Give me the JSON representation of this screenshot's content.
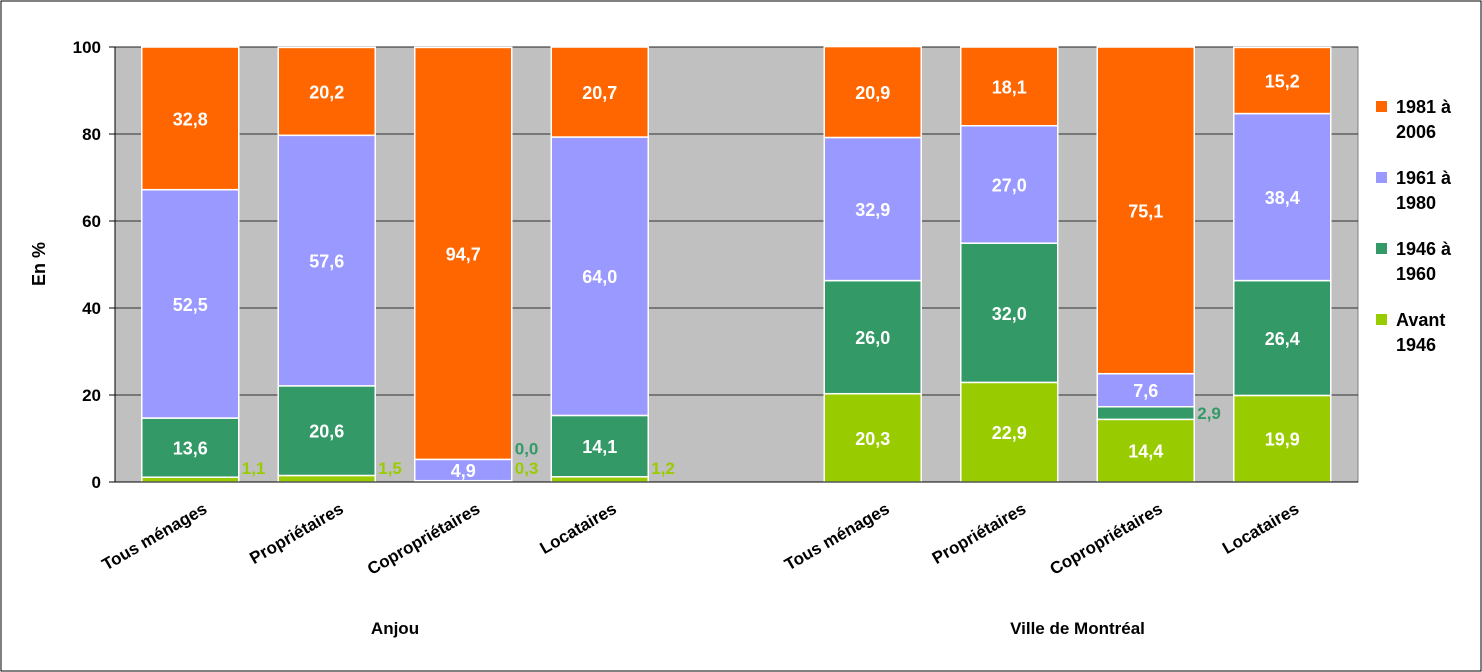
{
  "chart_data": {
    "type": "bar",
    "stacked": true,
    "ylabel": "En %",
    "ylim": [
      0,
      100
    ],
    "yticks": [
      "0",
      "20",
      "40",
      "60",
      "80",
      "100"
    ],
    "grid": true,
    "legend_position": "right",
    "groups": [
      {
        "name": "Anjou",
        "categories": [
          "Tous ménages",
          "Propriétaires",
          "Copropriétaires",
          "Locataires"
        ]
      },
      {
        "name": "Ville de Montréal",
        "categories": [
          "Tous ménages",
          "Propriétaires",
          "Copropriétaires",
          "Locataires"
        ]
      }
    ],
    "series": [
      {
        "name": "Avant 1946",
        "color": "#99cc00",
        "values": [
          1.1,
          1.5,
          0.3,
          1.2,
          20.3,
          22.9,
          14.4,
          19.9
        ],
        "labels": [
          "1,1",
          "1,5",
          "0,3",
          "1,2",
          "20,3",
          "22,9",
          "14,4",
          "19,9"
        ]
      },
      {
        "name": "1946 à 1960",
        "color": "#339966",
        "values": [
          13.6,
          20.6,
          0.0,
          14.1,
          26.0,
          32.0,
          2.9,
          26.4
        ],
        "labels": [
          "13,6",
          "20,6",
          "0,0",
          "14,1",
          "26,0",
          "32,0",
          "2,9",
          "26,4"
        ]
      },
      {
        "name": "1961 à 1980",
        "color": "#9999ff",
        "values": [
          52.5,
          57.6,
          4.9,
          64.0,
          32.9,
          27.0,
          7.6,
          38.4
        ],
        "labels": [
          "52,5",
          "57,6",
          "4,9",
          "64,0",
          "32,9",
          "27,0",
          "7,6",
          "38,4"
        ]
      },
      {
        "name": "1981 à 2006",
        "color": "#ff6600",
        "values": [
          32.8,
          20.2,
          94.7,
          20.7,
          20.9,
          18.1,
          75.1,
          15.2
        ],
        "labels": [
          "32,8",
          "20,2",
          "94,7",
          "20,7",
          "20,9",
          "18,1",
          "75,1",
          "15,2"
        ]
      }
    ],
    "legend": [
      {
        "line1": "1981 à",
        "line2": "2006",
        "color": "#ff6600"
      },
      {
        "line1": "1961 à",
        "line2": "1980",
        "color": "#9999ff"
      },
      {
        "line1": "1946 à",
        "line2": "1960",
        "color": "#339966"
      },
      {
        "line1": "Avant",
        "line2": "1946",
        "color": "#99cc00"
      }
    ]
  }
}
